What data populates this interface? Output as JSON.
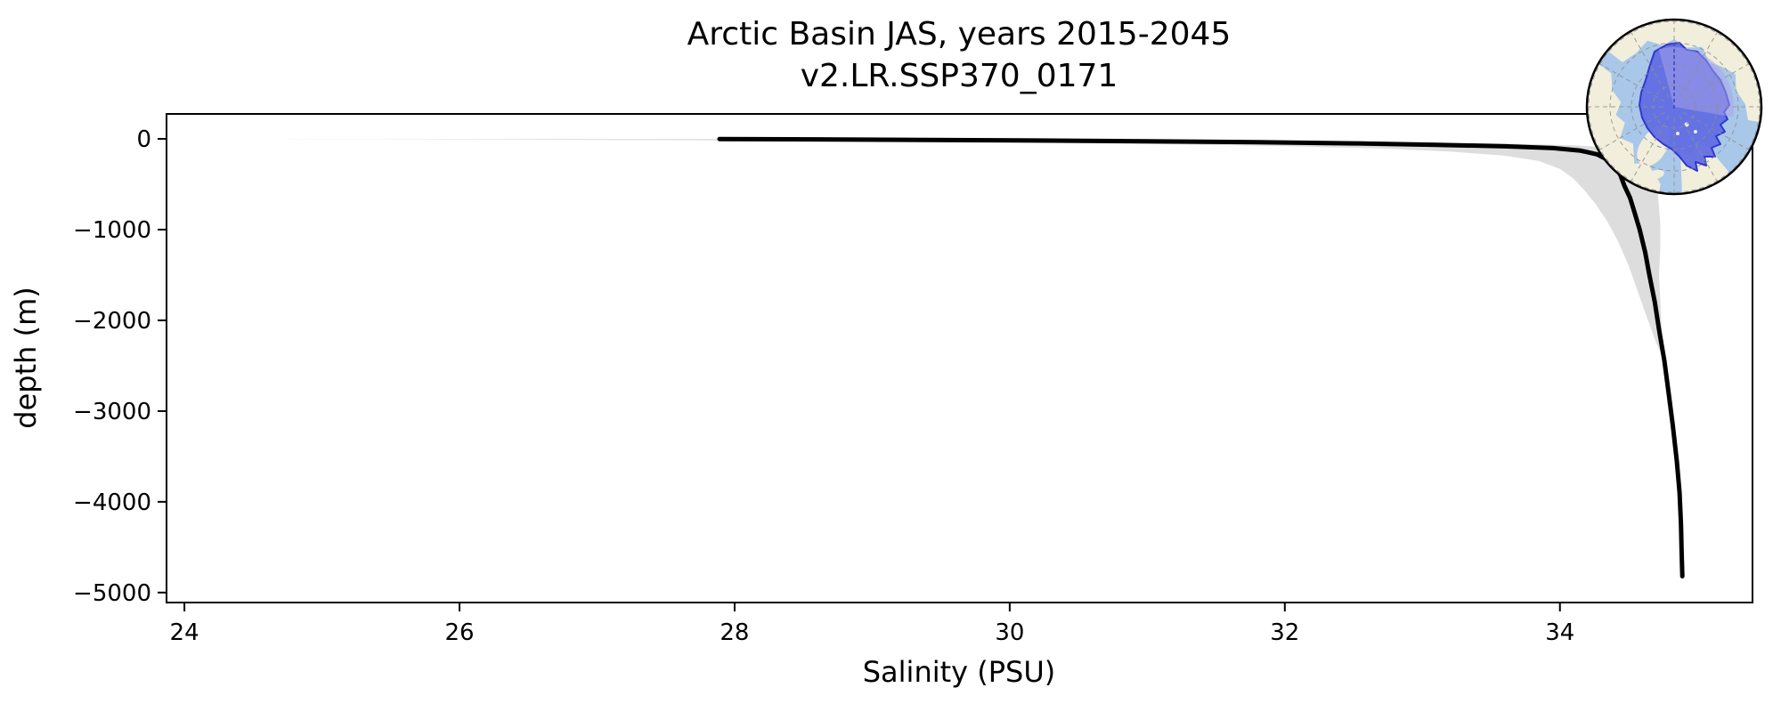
{
  "figure": {
    "title_line1": "Arctic Basin JAS, years 2015-2045",
    "title_line2": "v2.LR.SSP370_0171",
    "background": "#ffffff",
    "axis_color": "#000000"
  },
  "chart_data": {
    "type": "line",
    "title": "Arctic Basin JAS, years 2015-2045 v2.LR.SSP370_0171",
    "xlabel": "Salinity (PSU)",
    "ylabel": "depth (m)",
    "xlim": [
      23.87,
      35.4
    ],
    "ylim": [
      -5110,
      275
    ],
    "grid": false,
    "legend": "none",
    "x_ticks": {
      "values": [
        24,
        26,
        28,
        30,
        32,
        34
      ],
      "labels": [
        "24",
        "26",
        "28",
        "30",
        "32",
        "34"
      ]
    },
    "y_ticks": {
      "values": [
        0,
        -1000,
        -2000,
        -3000,
        -4000,
        -5000
      ],
      "labels": [
        "0",
        "−1000",
        "−2000",
        "−3000",
        "−4000",
        "−5000"
      ]
    },
    "series": [
      {
        "name": "mean salinity profile",
        "color": "#000000",
        "line_width": 5,
        "points": [
          [
            27.89,
            -2
          ],
          [
            28.6,
            -6
          ],
          [
            29.4,
            -11
          ],
          [
            30.2,
            -18
          ],
          [
            31.0,
            -26
          ],
          [
            31.8,
            -37
          ],
          [
            32.5,
            -50
          ],
          [
            33.1,
            -65
          ],
          [
            33.6,
            -82
          ],
          [
            33.95,
            -102
          ],
          [
            34.15,
            -130
          ],
          [
            34.27,
            -170
          ],
          [
            34.34,
            -225
          ],
          [
            34.4,
            -300
          ],
          [
            34.44,
            -400
          ],
          [
            34.47,
            -520
          ],
          [
            34.51,
            -650
          ],
          [
            34.54,
            -800
          ],
          [
            34.58,
            -1000
          ],
          [
            34.62,
            -1250
          ],
          [
            34.65,
            -1500
          ],
          [
            34.69,
            -1800
          ],
          [
            34.72,
            -2100
          ],
          [
            34.76,
            -2450
          ],
          [
            34.79,
            -2800
          ],
          [
            34.82,
            -3150
          ],
          [
            34.85,
            -3550
          ],
          [
            34.87,
            -3900
          ],
          [
            34.88,
            -4250
          ],
          [
            34.885,
            -4550
          ],
          [
            34.89,
            -4820
          ]
        ]
      }
    ],
    "envelope": {
      "name": "spread envelope (min–max across years)",
      "color": "#cecece",
      "opacity": 0.7,
      "min": [
        [
          24.45,
          -1
        ],
        [
          25.4,
          -4
        ],
        [
          26.4,
          -8
        ],
        [
          27.4,
          -13
        ],
        [
          28.4,
          -20
        ],
        [
          29.4,
          -30
        ],
        [
          30.3,
          -43
        ],
        [
          31.2,
          -60
        ],
        [
          32.0,
          -80
        ],
        [
          32.7,
          -105
        ],
        [
          33.2,
          -140
        ],
        [
          33.6,
          -185
        ],
        [
          33.85,
          -245
        ],
        [
          34.0,
          -330
        ],
        [
          34.1,
          -440
        ],
        [
          34.18,
          -570
        ],
        [
          34.26,
          -720
        ],
        [
          34.34,
          -900
        ],
        [
          34.42,
          -1120
        ],
        [
          34.5,
          -1400
        ],
        [
          34.57,
          -1700
        ],
        [
          34.64,
          -2000
        ],
        [
          34.7,
          -2250
        ],
        [
          34.76,
          -2450
        ]
      ],
      "max": [
        [
          28.2,
          -1
        ],
        [
          29.2,
          -4
        ],
        [
          30.2,
          -9
        ],
        [
          31.2,
          -16
        ],
        [
          32.1,
          -25
        ],
        [
          32.9,
          -37
        ],
        [
          33.6,
          -52
        ],
        [
          34.1,
          -70
        ],
        [
          34.35,
          -95
        ],
        [
          34.5,
          -130
        ],
        [
          34.58,
          -180
        ],
        [
          34.63,
          -245
        ],
        [
          34.66,
          -330
        ],
        [
          34.69,
          -440
        ],
        [
          34.71,
          -580
        ],
        [
          34.72,
          -750
        ],
        [
          34.73,
          -950
        ],
        [
          34.73,
          -1200
        ],
        [
          34.72,
          -1500
        ],
        [
          34.73,
          -1800
        ],
        [
          34.74,
          -2100
        ],
        [
          34.76,
          -2450
        ]
      ]
    }
  },
  "inset_map": {
    "description": "orthographic globe over North Pole with Arctic Basin region highlighted",
    "colors": {
      "ocean": "#a9c7e9",
      "land": "#f1eedb",
      "basin_fill": "#5e6ae2",
      "basin_stroke": "#3038cf",
      "sector_overlay": "#a9a3e9",
      "graticule": "#8f8f8f",
      "meridian": "#3a41c8",
      "border": "#000000"
    }
  }
}
